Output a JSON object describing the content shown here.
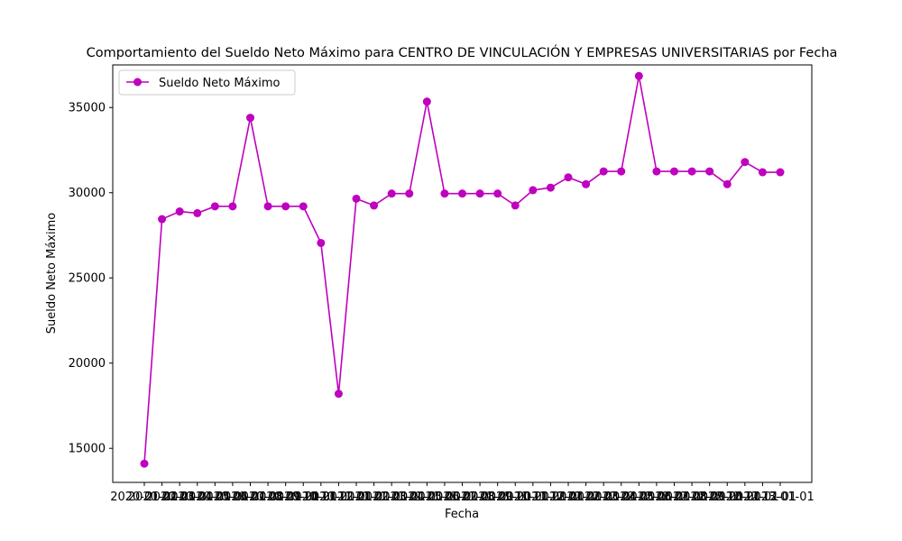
{
  "chart_data": {
    "type": "line",
    "title": "Comportamiento del Sueldo Neto Máximo para CENTRO DE VINCULACIÓN Y EMPRESAS UNIVERSITARIAS por Fecha",
    "xlabel": "Fecha",
    "ylabel": "Sueldo Neto Máximo",
    "ylim": [
      13000,
      37500
    ],
    "yticks": [
      15000,
      20000,
      25000,
      30000,
      35000
    ],
    "grid": false,
    "legend_position": "top-left",
    "line_color": "#bf00bf",
    "x": [
      "2020-01-01",
      "2020-02-01",
      "2020-03-01",
      "2020-04-01",
      "2020-05-01",
      "2020-06-01",
      "2020-07-01",
      "2020-08-01",
      "2020-09-01",
      "2020-10-01",
      "2020-11-01",
      "2020-12-01",
      "2021-01-01",
      "2021-02-01",
      "2021-03-01",
      "2021-04-01",
      "2021-05-01",
      "2021-06-01",
      "2021-07-01",
      "2021-08-01",
      "2021-09-01",
      "2021-10-01",
      "2021-11-01",
      "2021-12-01",
      "2022-01-01",
      "2022-02-01",
      "2022-03-01",
      "2022-04-01",
      "2022-05-01",
      "2022-06-01",
      "2022-07-01",
      "2022-08-01",
      "2022-09-01",
      "2022-10-01",
      "2022-11-01",
      "2022-12-01",
      "2023-01-01"
    ],
    "series": [
      {
        "name": "Sueldo Neto Máximo",
        "values": [
          14100,
          28450,
          28900,
          28800,
          29200,
          29200,
          34400,
          29200,
          29200,
          29200,
          27050,
          18200,
          29650,
          29250,
          29950,
          29950,
          35350,
          29950,
          29950,
          29950,
          29950,
          29250,
          30150,
          30300,
          30900,
          30500,
          31250,
          31250,
          36850,
          31250,
          31250,
          31250,
          31250,
          30500,
          31800,
          31200,
          31200
        ]
      }
    ]
  }
}
